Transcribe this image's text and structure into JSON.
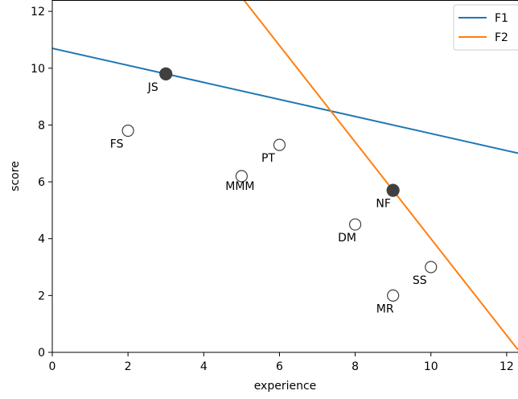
{
  "chart_data": {
    "type": "scatter",
    "xlabel": "experience",
    "ylabel": "score",
    "xlim": [
      0,
      12.3
    ],
    "ylim": [
      0,
      12.4
    ],
    "x_ticks": [
      0,
      2,
      4,
      6,
      8,
      10,
      12
    ],
    "y_ticks": [
      0,
      2,
      4,
      6,
      8,
      10,
      12
    ],
    "grid": false,
    "legend_position": "top-right",
    "points": [
      {
        "label": "JS",
        "x": 3,
        "y": 9.8,
        "filled": true
      },
      {
        "label": "FS",
        "x": 2,
        "y": 7.8,
        "filled": false
      },
      {
        "label": "PT",
        "x": 6,
        "y": 7.3,
        "filled": false
      },
      {
        "label": "MMM",
        "x": 5,
        "y": 6.2,
        "filled": false
      },
      {
        "label": "NF",
        "x": 9,
        "y": 5.7,
        "filled": true
      },
      {
        "label": "DM",
        "x": 8,
        "y": 4.5,
        "filled": false
      },
      {
        "label": "SS",
        "x": 10,
        "y": 3.0,
        "filled": false
      },
      {
        "label": "MR",
        "x": 9,
        "y": 2.0,
        "filled": false
      }
    ],
    "lines": [
      {
        "name": "F1",
        "color": "#1f77b4",
        "intercept": 10.7,
        "slope": -0.3
      },
      {
        "name": "F2",
        "color": "#ff7f0e",
        "intercept": 21.0,
        "slope": -1.7
      }
    ]
  }
}
